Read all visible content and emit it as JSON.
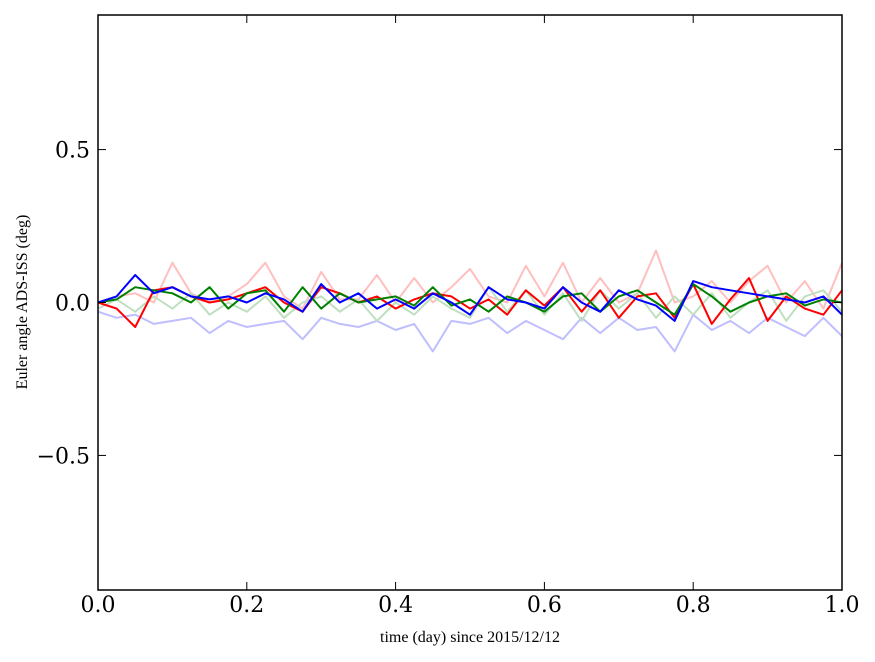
{
  "chart_data": {
    "type": "line",
    "title": "",
    "xlabel": "time (day) since 2015/12/12",
    "ylabel": "Euler angle ADS-ISS (deg)",
    "xlim": [
      0.0,
      1.0
    ],
    "ylim": [
      -0.94,
      0.94
    ],
    "grid": false,
    "legend": "none",
    "xticks": [
      0.0,
      0.2,
      0.4,
      0.6,
      0.8,
      1.0
    ],
    "xtick_labels": [
      "0.0",
      "0.2",
      "0.4",
      "0.6",
      "0.8",
      "1.0"
    ],
    "yticks": [
      0.5,
      0.0,
      -0.5
    ],
    "ytick_labels": [
      "0.5",
      "0.0",
      "−0.5"
    ],
    "x": [
      0,
      0.025,
      0.05,
      0.075,
      0.1,
      0.125,
      0.15,
      0.175,
      0.2,
      0.225,
      0.25,
      0.275,
      0.3,
      0.325,
      0.35,
      0.375,
      0.4,
      0.425,
      0.45,
      0.475,
      0.5,
      0.525,
      0.55,
      0.575,
      0.6,
      0.625,
      0.65,
      0.675,
      0.7,
      0.725,
      0.75,
      0.775,
      0.8,
      0.825,
      0.85,
      0.875,
      0.9,
      0.925,
      0.95,
      0.975,
      1.0
    ],
    "series": [
      {
        "color": "#ffbfbf",
        "values": [
          0.0,
          0.02,
          0.03,
          0.0,
          0.13,
          0.03,
          0.0,
          0.02,
          0.06,
          0.13,
          0.02,
          -0.02,
          0.1,
          0.01,
          0.01,
          0.09,
          0.0,
          0.08,
          0.0,
          0.05,
          0.11,
          0.02,
          0.0,
          0.12,
          0.02,
          0.13,
          0.0,
          0.08,
          0.0,
          0.03,
          0.17,
          0.0,
          0.02,
          0.07,
          0.0,
          0.07,
          0.12,
          0.0,
          0.07,
          -0.02,
          0.13
        ]
      },
      {
        "color": "#bfbfff",
        "values": [
          -0.03,
          -0.05,
          -0.04,
          -0.07,
          -0.06,
          -0.05,
          -0.1,
          -0.06,
          -0.08,
          -0.07,
          -0.06,
          -0.12,
          -0.05,
          -0.07,
          -0.08,
          -0.06,
          -0.09,
          -0.07,
          -0.16,
          -0.06,
          -0.07,
          -0.05,
          -0.1,
          -0.06,
          -0.09,
          -0.12,
          -0.05,
          -0.1,
          -0.05,
          -0.09,
          -0.08,
          -0.16,
          -0.04,
          -0.09,
          -0.06,
          -0.1,
          -0.05,
          -0.08,
          -0.11,
          -0.05,
          -0.11
        ]
      },
      {
        "color": "#bfdfbf",
        "values": [
          -0.02,
          0.01,
          -0.03,
          0.02,
          -0.02,
          0.03,
          -0.04,
          0.0,
          -0.03,
          0.02,
          -0.05,
          0.0,
          0.02,
          -0.03,
          0.01,
          -0.06,
          0.0,
          -0.04,
          0.02,
          -0.02,
          -0.05,
          0.05,
          -0.03,
          0.04,
          -0.04,
          0.03,
          -0.06,
          0.04,
          -0.02,
          0.03,
          -0.05,
          0.02,
          -0.04,
          0.03,
          -0.05,
          0.0,
          0.04,
          -0.06,
          0.02,
          0.04,
          -0.03
        ]
      },
      {
        "color": "#ff0000",
        "values": [
          0.0,
          -0.02,
          -0.08,
          0.04,
          0.05,
          0.02,
          0.0,
          0.01,
          0.03,
          0.05,
          0.0,
          -0.03,
          0.05,
          0.03,
          0.0,
          0.02,
          -0.02,
          0.01,
          0.03,
          0.02,
          -0.02,
          0.01,
          -0.04,
          0.04,
          -0.01,
          0.05,
          -0.03,
          0.04,
          -0.05,
          0.02,
          0.03,
          -0.05,
          0.06,
          -0.07,
          0.01,
          0.08,
          -0.06,
          0.02,
          -0.02,
          -0.04,
          0.04
        ]
      },
      {
        "color": "#008000",
        "values": [
          0.0,
          0.01,
          0.05,
          0.04,
          0.03,
          0.0,
          0.05,
          -0.02,
          0.03,
          0.04,
          -0.03,
          0.05,
          -0.02,
          0.03,
          0.0,
          0.01,
          0.02,
          -0.01,
          0.05,
          -0.01,
          0.01,
          -0.03,
          0.02,
          0.0,
          -0.03,
          0.02,
          0.03,
          -0.03,
          0.02,
          0.04,
          0.0,
          -0.04,
          0.06,
          0.02,
          -0.03,
          0.0,
          0.02,
          0.03,
          -0.01,
          0.01,
          0.0
        ]
      },
      {
        "color": "#0000ff",
        "values": [
          0.0,
          0.02,
          0.09,
          0.03,
          0.05,
          0.02,
          0.01,
          0.02,
          0.0,
          0.03,
          0.01,
          -0.03,
          0.06,
          0.0,
          0.03,
          -0.02,
          0.01,
          -0.02,
          0.03,
          0.0,
          -0.04,
          0.05,
          0.01,
          0.0,
          -0.02,
          0.05,
          0.0,
          -0.03,
          0.04,
          0.01,
          -0.01,
          -0.06,
          0.07,
          0.05,
          0.04,
          0.03,
          0.02,
          0.01,
          0.0,
          0.02,
          -0.04
        ]
      }
    ]
  }
}
